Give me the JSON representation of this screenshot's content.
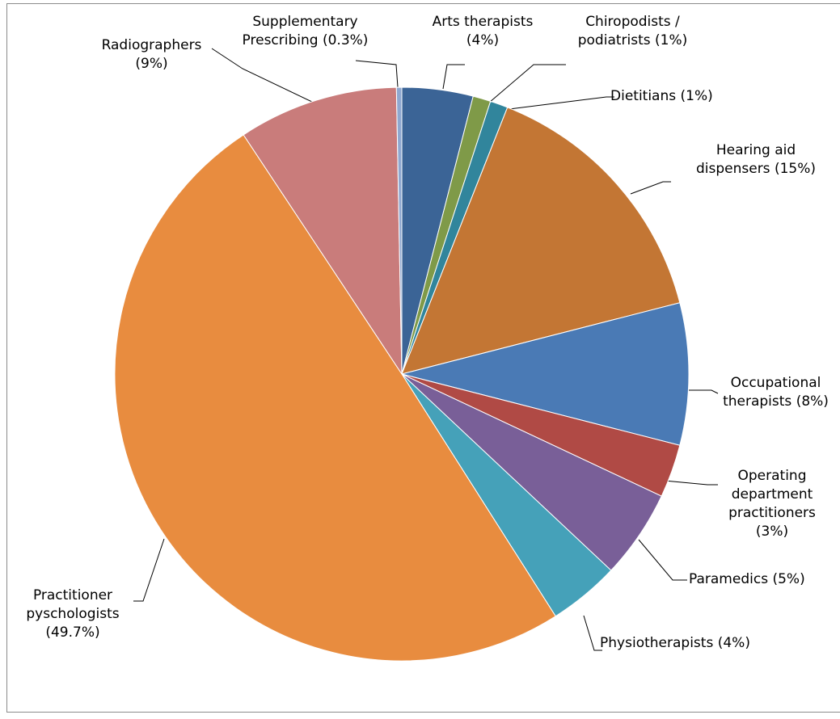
{
  "chart_data": {
    "type": "pie",
    "categories": [
      "Arts therapists",
      "Chiropodists / podiatrists",
      "Dietitians",
      "Hearing aid dispensers",
      "Occupational therapists",
      "Operating department practitioners",
      "Paramedics",
      "Physiotherapists",
      "Practitioner pyschologists",
      "Radiographers",
      "Supplementary Prescribing"
    ],
    "values": [
      4,
      1,
      1,
      15,
      8,
      3,
      5,
      4,
      49.7,
      9,
      0.3
    ],
    "value_labels": [
      "(4%)",
      "(1%)",
      "(1%)",
      "(15%)",
      "(8%)",
      "(3%)",
      "(5%)",
      "(4%)",
      "(49.7%)",
      "(9%)",
      "(0.3%)"
    ],
    "colors": [
      "#3b6496",
      "#7f9a48",
      "#31859c",
      "#c37634",
      "#4a7ab5",
      "#b04a45",
      "#795f98",
      "#45a1b9",
      "#e88c3f",
      "#c97c7b",
      "#8fa8d0"
    ]
  }
}
